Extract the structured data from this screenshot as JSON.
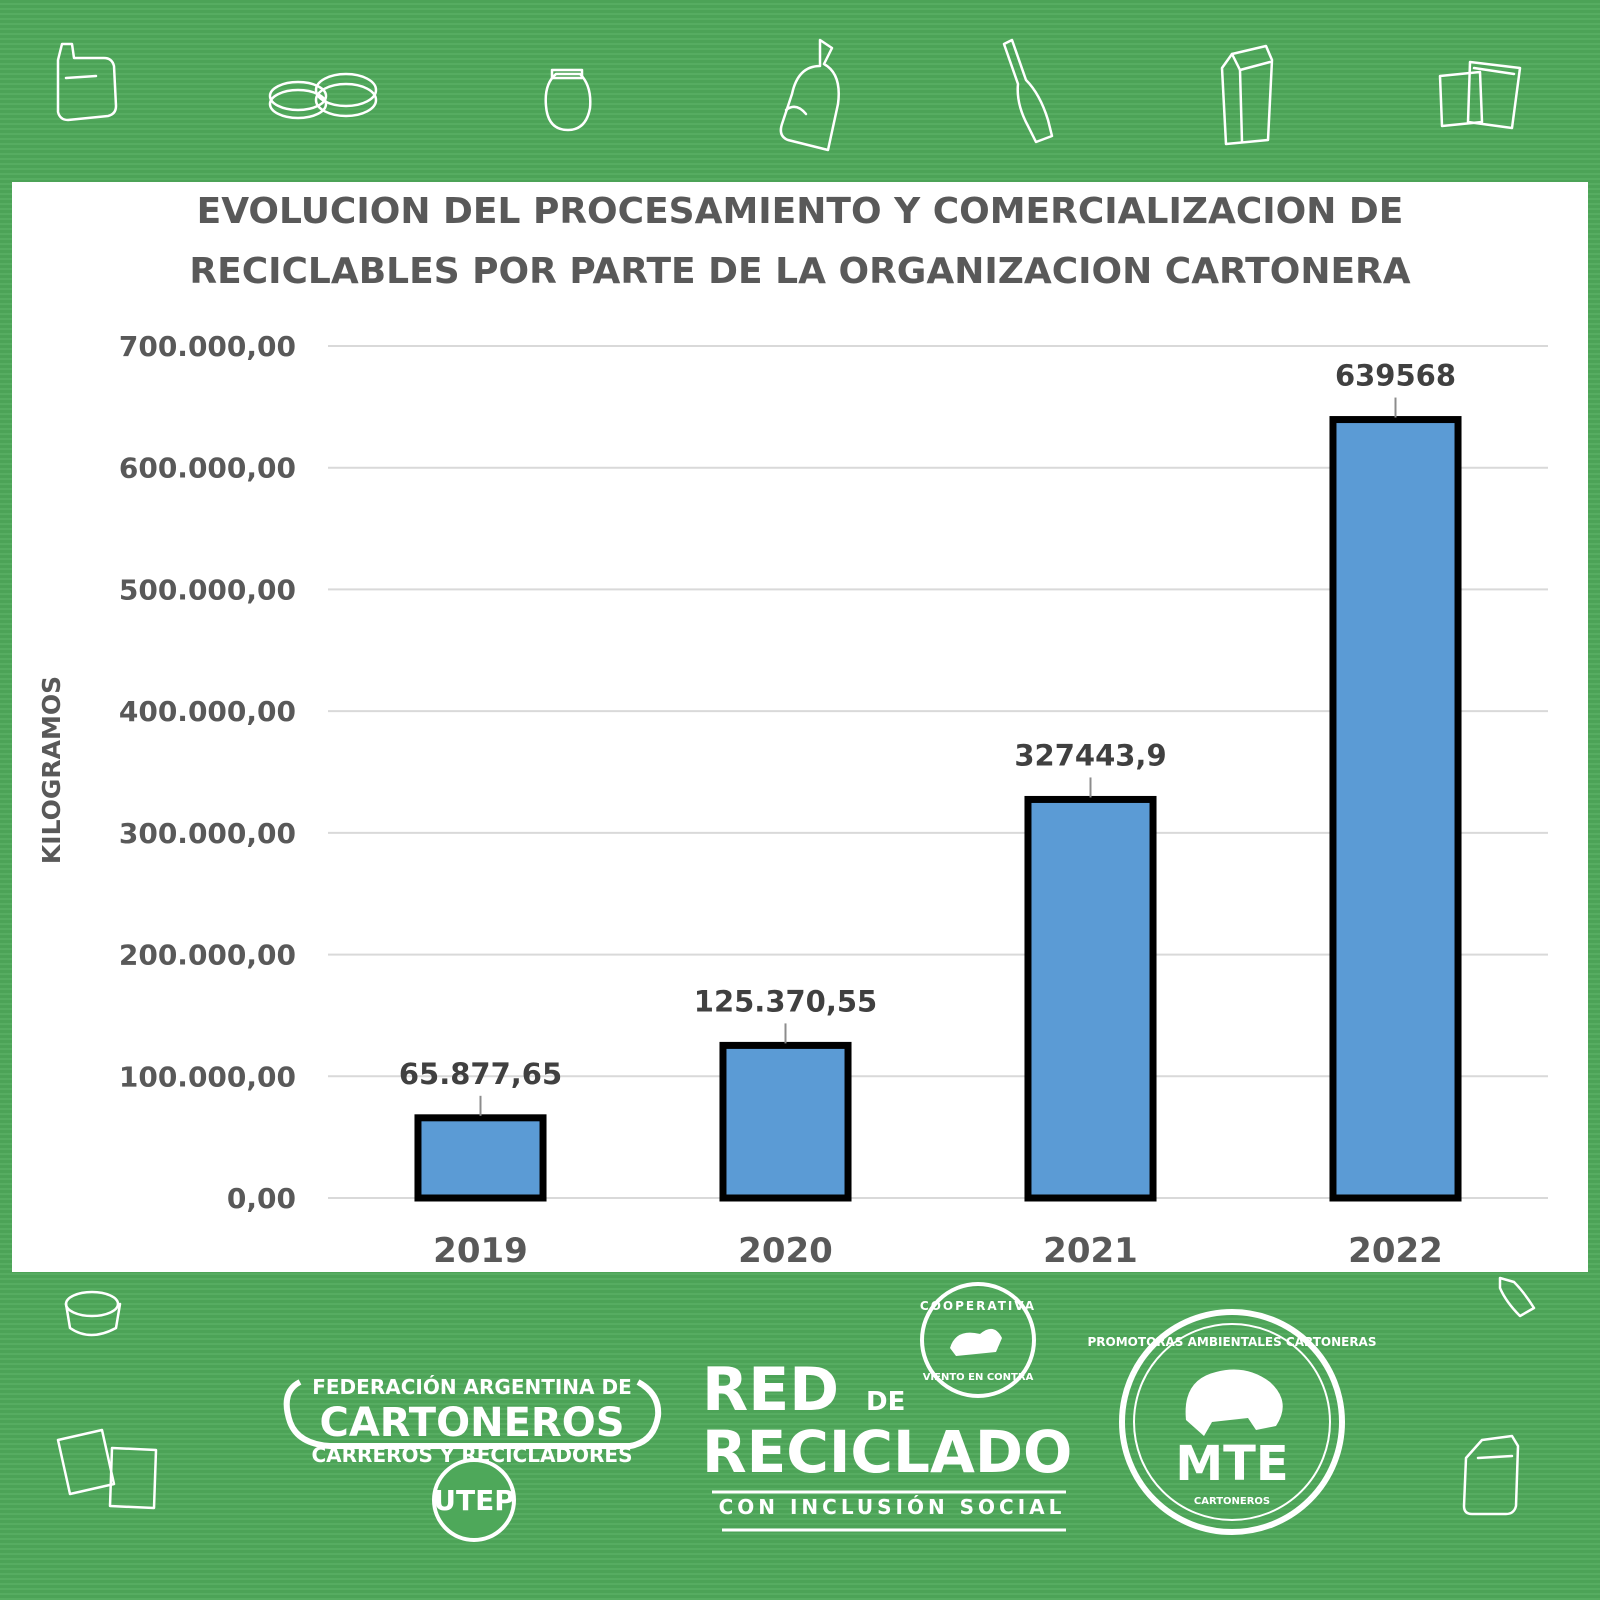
{
  "chart_data": {
    "type": "bar",
    "title": "EVOLUCION DEL PROCESAMIENTO Y COMERCIALIZACION DE RECICLABLES POR PARTE DE LA ORGANIZACION CARTONERA",
    "title_lines": [
      "EVOLUCION DEL PROCESAMIENTO Y COMERCIALIZACION DE",
      "RECICLABLES POR PARTE DE LA ORGANIZACION CARTONERA"
    ],
    "ylabel": "KILOGRAMOS",
    "xlabel": "",
    "categories": [
      "2019",
      "2020",
      "2021",
      "2022"
    ],
    "values": [
      65877.65,
      125370.55,
      327443.9,
      639568
    ],
    "data_labels": [
      "65.877,65",
      "125.370,55",
      "327443,9",
      "639568"
    ],
    "ylim": [
      0,
      700000
    ],
    "yticks": [
      0,
      100000,
      200000,
      300000,
      400000,
      500000,
      600000,
      700000
    ],
    "ytick_labels": [
      "0,00",
      "100.000,00",
      "200.000,00",
      "300.000,00",
      "400.000,00",
      "500.000,00",
      "600.000,00",
      "700.000,00"
    ],
    "grid": true,
    "bar_color": "#5b9bd5",
    "bar_border_color": "#000000"
  },
  "footer": {
    "fed_line1": "FEDERACIÓN ARGENTINA DE",
    "fed_line2": "CARTONEROS",
    "fed_line3": "CARREROS Y RECICLADORES",
    "fed_badge": "UTEP",
    "red_word1": "RED",
    "red_word2": "DE",
    "red_word3": "RECICLADO",
    "red_tagline": "CON INCLUSIÓN SOCIAL",
    "coop_top": "COOPERATIVA",
    "coop_bottom": "VIENTO EN CONTRA",
    "mte_ring": "PROMOTORAS AMBIENTALES CARTONERAS",
    "mte_name": "MTE",
    "mte_small": "CARTONEROS"
  },
  "colors": {
    "background_green": "#4ea85a",
    "panel": "#ffffff",
    "text_gray": "#595959",
    "grid": "#d9d9d9"
  }
}
